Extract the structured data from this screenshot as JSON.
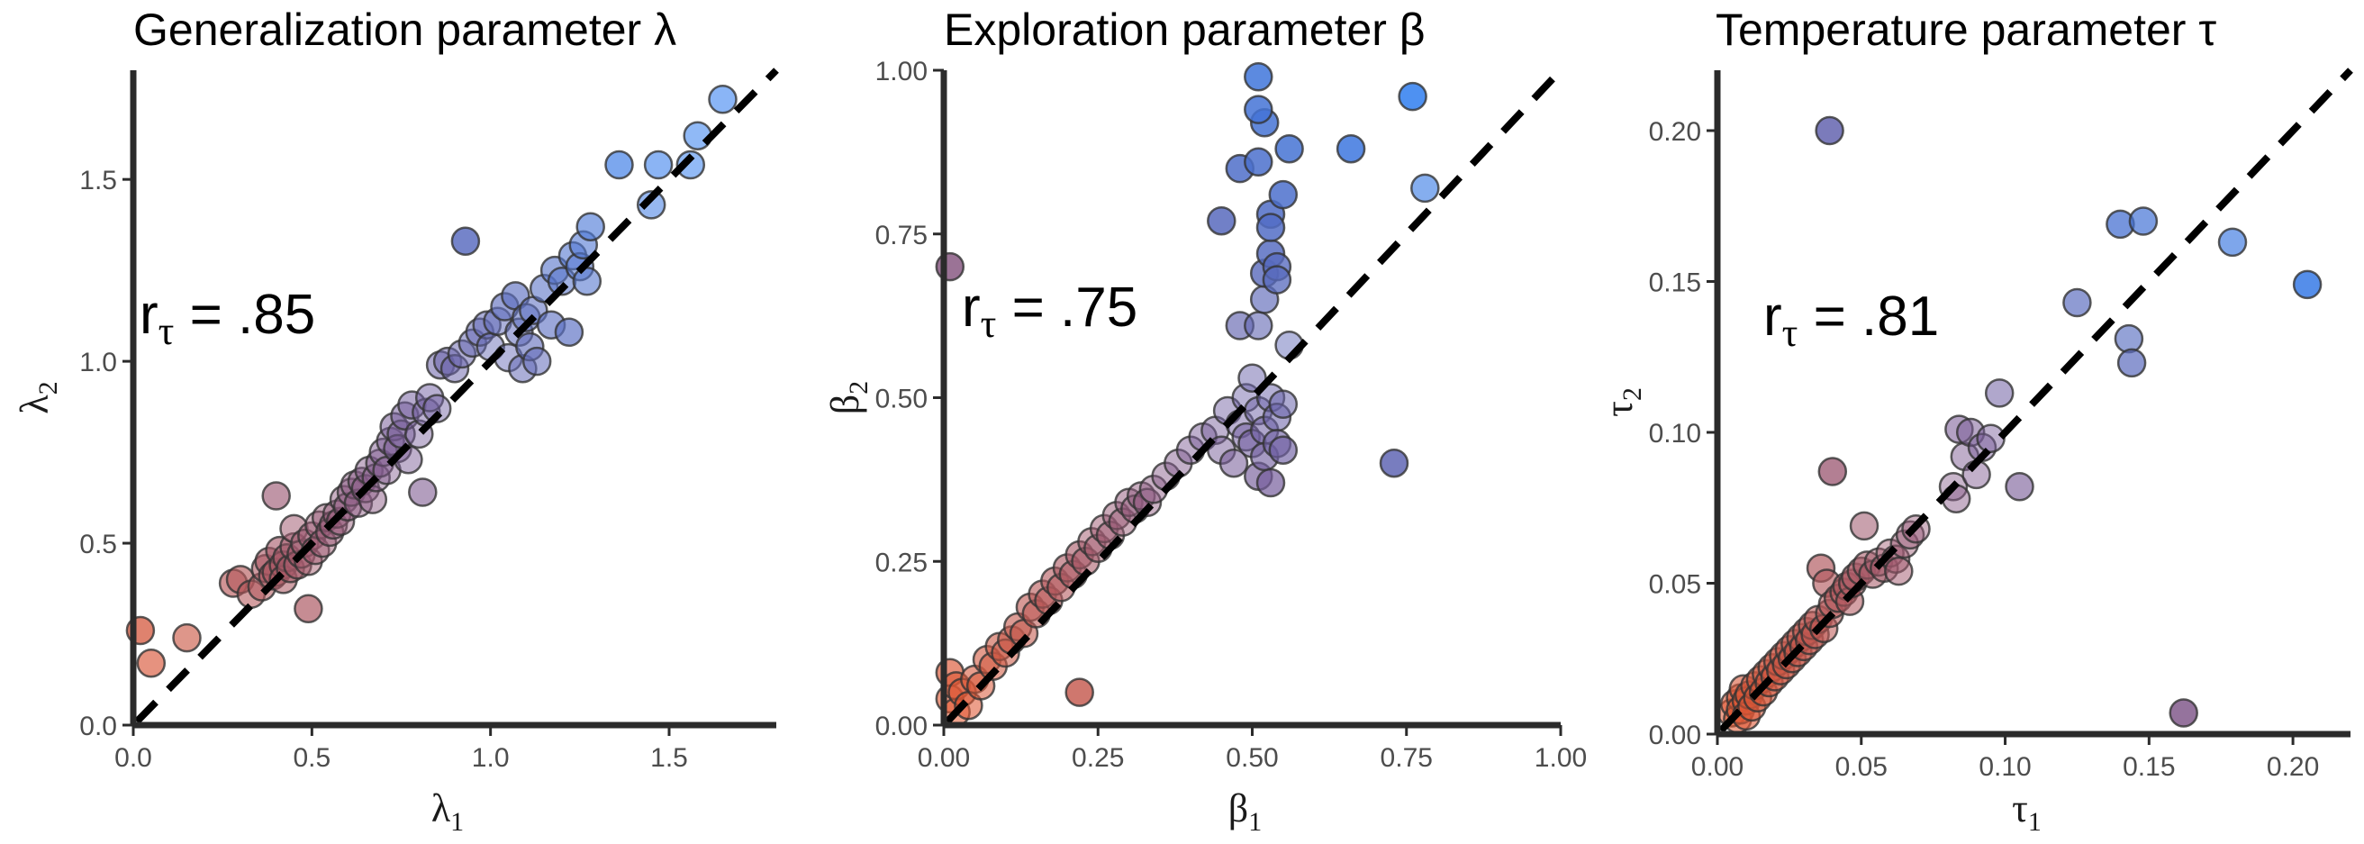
{
  "chart_data": [
    {
      "type": "scatter",
      "title": "Generalization parameter λ",
      "xlabel": "λ",
      "xlabel_sub": "1",
      "ylabel": "λ",
      "ylabel_sub": "2",
      "annotation": {
        "main": "r",
        "sub": "τ",
        "value": " = .85"
      },
      "xlim": [
        0,
        1.8
      ],
      "ylim": [
        0,
        1.8
      ],
      "xticks": [
        0.0,
        0.5,
        1.0,
        1.5
      ],
      "yticks": [
        0.0,
        0.5,
        1.0,
        1.5
      ],
      "xtick_labels": [
        "0.0",
        "0.5",
        "1.0",
        "1.5"
      ],
      "ytick_labels": [
        "0.0",
        "0.5",
        "1.0",
        "1.5"
      ],
      "reference_line": "identity",
      "color_low": "#e8572a",
      "color_high": "#3f86f0",
      "points": [
        [
          0.02,
          0.26
        ],
        [
          0.05,
          0.17
        ],
        [
          0.15,
          0.24
        ],
        [
          0.28,
          0.39
        ],
        [
          0.3,
          0.4
        ],
        [
          0.33,
          0.36
        ],
        [
          0.36,
          0.38
        ],
        [
          0.37,
          0.43
        ],
        [
          0.38,
          0.45
        ],
        [
          0.39,
          0.41
        ],
        [
          0.4,
          0.42
        ],
        [
          0.4,
          0.63
        ],
        [
          0.41,
          0.48
        ],
        [
          0.42,
          0.44
        ],
        [
          0.42,
          0.4
        ],
        [
          0.43,
          0.46
        ],
        [
          0.44,
          0.43
        ],
        [
          0.45,
          0.49
        ],
        [
          0.45,
          0.54
        ],
        [
          0.46,
          0.44
        ],
        [
          0.47,
          0.47
        ],
        [
          0.48,
          0.5
        ],
        [
          0.49,
          0.32
        ],
        [
          0.49,
          0.45
        ],
        [
          0.5,
          0.52
        ],
        [
          0.51,
          0.48
        ],
        [
          0.52,
          0.55
        ],
        [
          0.53,
          0.5
        ],
        [
          0.54,
          0.57
        ],
        [
          0.55,
          0.53
        ],
        [
          0.56,
          0.55
        ],
        [
          0.57,
          0.58
        ],
        [
          0.58,
          0.56
        ],
        [
          0.59,
          0.62
        ],
        [
          0.6,
          0.6
        ],
        [
          0.61,
          0.64
        ],
        [
          0.62,
          0.66
        ],
        [
          0.63,
          0.61
        ],
        [
          0.64,
          0.67
        ],
        [
          0.65,
          0.65
        ],
        [
          0.66,
          0.7
        ],
        [
          0.67,
          0.62
        ],
        [
          0.68,
          0.68
        ],
        [
          0.69,
          0.72
        ],
        [
          0.7,
          0.75
        ],
        [
          0.71,
          0.7
        ],
        [
          0.72,
          0.78
        ],
        [
          0.73,
          0.82
        ],
        [
          0.74,
          0.76
        ],
        [
          0.75,
          0.8
        ],
        [
          0.76,
          0.85
        ],
        [
          0.77,
          0.73
        ],
        [
          0.78,
          0.88
        ],
        [
          0.8,
          0.8
        ],
        [
          0.81,
          0.64
        ],
        [
          0.82,
          0.86
        ],
        [
          0.83,
          0.9
        ],
        [
          0.85,
          0.87
        ],
        [
          0.86,
          0.99
        ],
        [
          0.88,
          1.0
        ],
        [
          0.9,
          0.98
        ],
        [
          0.92,
          1.02
        ],
        [
          0.93,
          1.33
        ],
        [
          0.95,
          1.05
        ],
        [
          0.97,
          1.08
        ],
        [
          0.99,
          1.1
        ],
        [
          1.0,
          1.04
        ],
        [
          1.02,
          1.11
        ],
        [
          1.04,
          1.15
        ],
        [
          1.05,
          1.01
        ],
        [
          1.07,
          1.18
        ],
        [
          1.08,
          1.08
        ],
        [
          1.09,
          0.98
        ],
        [
          1.1,
          1.12
        ],
        [
          1.11,
          1.04
        ],
        [
          1.12,
          1.14
        ],
        [
          1.13,
          1.0
        ],
        [
          1.15,
          1.2
        ],
        [
          1.17,
          1.1
        ],
        [
          1.18,
          1.25
        ],
        [
          1.2,
          1.22
        ],
        [
          1.22,
          1.08
        ],
        [
          1.23,
          1.29
        ],
        [
          1.25,
          1.26
        ],
        [
          1.26,
          1.32
        ],
        [
          1.27,
          1.22
        ],
        [
          1.28,
          1.37
        ],
        [
          1.36,
          1.54
        ],
        [
          1.45,
          1.43
        ],
        [
          1.47,
          1.54
        ],
        [
          1.56,
          1.54
        ],
        [
          1.58,
          1.62
        ],
        [
          1.65,
          1.72
        ]
      ]
    },
    {
      "type": "scatter",
      "title": "Exploration parameter β",
      "xlabel": "β",
      "xlabel_sub": "1",
      "ylabel": "β",
      "ylabel_sub": "2",
      "annotation": {
        "main": "r",
        "sub": "τ",
        "value": " = .75"
      },
      "xlim": [
        0,
        1.0
      ],
      "ylim": [
        0,
        1.0
      ],
      "xticks": [
        0.0,
        0.25,
        0.5,
        0.75,
        1.0
      ],
      "yticks": [
        0.0,
        0.25,
        0.5,
        0.75,
        1.0
      ],
      "xtick_labels": [
        "0.00",
        "0.25",
        "0.50",
        "0.75",
        "1.00"
      ],
      "ytick_labels": [
        "0.00",
        "0.25",
        "0.50",
        "0.75",
        "1.00"
      ],
      "reference_line": "identity",
      "color_low": "#e8572a",
      "color_high": "#2f7ef0",
      "points": [
        [
          0.01,
          0.7
        ],
        [
          0.01,
          0.08
        ],
        [
          0.01,
          0.04
        ],
        [
          0.02,
          0.02
        ],
        [
          0.02,
          0.06
        ],
        [
          0.03,
          0.05
        ],
        [
          0.04,
          0.03
        ],
        [
          0.05,
          0.07
        ],
        [
          0.06,
          0.06
        ],
        [
          0.07,
          0.1
        ],
        [
          0.08,
          0.09
        ],
        [
          0.09,
          0.12
        ],
        [
          0.1,
          0.11
        ],
        [
          0.11,
          0.13
        ],
        [
          0.12,
          0.15
        ],
        [
          0.13,
          0.14
        ],
        [
          0.14,
          0.18
        ],
        [
          0.15,
          0.17
        ],
        [
          0.16,
          0.2
        ],
        [
          0.17,
          0.19
        ],
        [
          0.18,
          0.22
        ],
        [
          0.19,
          0.21
        ],
        [
          0.2,
          0.24
        ],
        [
          0.21,
          0.23
        ],
        [
          0.22,
          0.26
        ],
        [
          0.22,
          0.05
        ],
        [
          0.23,
          0.25
        ],
        [
          0.24,
          0.28
        ],
        [
          0.25,
          0.27
        ],
        [
          0.26,
          0.3
        ],
        [
          0.27,
          0.29
        ],
        [
          0.28,
          0.32
        ],
        [
          0.29,
          0.31
        ],
        [
          0.3,
          0.34
        ],
        [
          0.31,
          0.33
        ],
        [
          0.32,
          0.35
        ],
        [
          0.33,
          0.34
        ],
        [
          0.34,
          0.36
        ],
        [
          0.36,
          0.38
        ],
        [
          0.38,
          0.4
        ],
        [
          0.4,
          0.42
        ],
        [
          0.42,
          0.44
        ],
        [
          0.44,
          0.45
        ],
        [
          0.45,
          0.42
        ],
        [
          0.46,
          0.48
        ],
        [
          0.47,
          0.4
        ],
        [
          0.48,
          0.61
        ],
        [
          0.48,
          0.46
        ],
        [
          0.49,
          0.5
        ],
        [
          0.49,
          0.44
        ],
        [
          0.5,
          0.53
        ],
        [
          0.5,
          0.43
        ],
        [
          0.51,
          0.48
        ],
        [
          0.51,
          0.38
        ],
        [
          0.52,
          0.45
        ],
        [
          0.52,
          0.41
        ],
        [
          0.53,
          0.5
        ],
        [
          0.53,
          0.37
        ],
        [
          0.54,
          0.47
        ],
        [
          0.54,
          0.43
        ],
        [
          0.55,
          0.49
        ],
        [
          0.55,
          0.42
        ],
        [
          0.51,
          0.61
        ],
        [
          0.52,
          0.65
        ],
        [
          0.52,
          0.69
        ],
        [
          0.53,
          0.72
        ],
        [
          0.53,
          0.78
        ],
        [
          0.54,
          0.7
        ],
        [
          0.48,
          0.85
        ],
        [
          0.51,
          0.86
        ],
        [
          0.52,
          0.92
        ],
        [
          0.51,
          0.99
        ],
        [
          0.51,
          0.94
        ],
        [
          0.55,
          0.81
        ],
        [
          0.56,
          0.58
        ],
        [
          0.56,
          0.88
        ],
        [
          0.45,
          0.77
        ],
        [
          0.53,
          0.76
        ],
        [
          0.54,
          0.68
        ],
        [
          0.66,
          0.88
        ],
        [
          0.73,
          0.4
        ],
        [
          0.76,
          0.96
        ],
        [
          0.78,
          0.82
        ]
      ]
    },
    {
      "type": "scatter",
      "title": "Temperature parameter τ",
      "xlabel": "τ",
      "xlabel_sub": "1",
      "ylabel": "τ",
      "ylabel_sub": "2",
      "annotation": {
        "main": "r",
        "sub": "τ",
        "value": " = .81"
      },
      "xlim": [
        0,
        0.22
      ],
      "ylim": [
        0,
        0.22
      ],
      "xticks": [
        0.0,
        0.05,
        0.1,
        0.15,
        0.2
      ],
      "yticks": [
        0.0,
        0.05,
        0.1,
        0.15,
        0.2
      ],
      "xtick_labels": [
        "0.00",
        "0.05",
        "0.10",
        "0.15",
        "0.20"
      ],
      "ytick_labels": [
        "0.00",
        "0.05",
        "0.10",
        "0.15",
        "0.20"
      ],
      "reference_line": "identity",
      "color_low": "#e8572a",
      "color_high": "#2f7ef0",
      "points": [
        [
          0.005,
          0.007
        ],
        [
          0.006,
          0.01
        ],
        [
          0.007,
          0.005
        ],
        [
          0.008,
          0.012
        ],
        [
          0.008,
          0.008
        ],
        [
          0.009,
          0.015
        ],
        [
          0.01,
          0.011
        ],
        [
          0.01,
          0.006
        ],
        [
          0.011,
          0.013
        ],
        [
          0.012,
          0.009
        ],
        [
          0.013,
          0.016
        ],
        [
          0.014,
          0.012
        ],
        [
          0.015,
          0.018
        ],
        [
          0.016,
          0.014
        ],
        [
          0.017,
          0.02
        ],
        [
          0.018,
          0.017
        ],
        [
          0.019,
          0.022
        ],
        [
          0.02,
          0.019
        ],
        [
          0.021,
          0.024
        ],
        [
          0.022,
          0.021
        ],
        [
          0.023,
          0.026
        ],
        [
          0.024,
          0.023
        ],
        [
          0.025,
          0.028
        ],
        [
          0.026,
          0.025
        ],
        [
          0.027,
          0.03
        ],
        [
          0.028,
          0.027
        ],
        [
          0.029,
          0.032
        ],
        [
          0.03,
          0.029
        ],
        [
          0.031,
          0.034
        ],
        [
          0.032,
          0.031
        ],
        [
          0.033,
          0.036
        ],
        [
          0.034,
          0.033
        ],
        [
          0.035,
          0.038
        ],
        [
          0.036,
          0.055
        ],
        [
          0.037,
          0.035
        ],
        [
          0.038,
          0.05
        ],
        [
          0.039,
          0.04
        ],
        [
          0.04,
          0.087
        ],
        [
          0.04,
          0.043
        ],
        [
          0.042,
          0.045
        ],
        [
          0.044,
          0.047
        ],
        [
          0.045,
          0.049
        ],
        [
          0.046,
          0.044
        ],
        [
          0.047,
          0.05
        ],
        [
          0.048,
          0.052
        ],
        [
          0.05,
          0.054
        ],
        [
          0.051,
          0.069
        ],
        [
          0.052,
          0.056
        ],
        [
          0.054,
          0.053
        ],
        [
          0.056,
          0.057
        ],
        [
          0.058,
          0.055
        ],
        [
          0.06,
          0.06
        ],
        [
          0.062,
          0.058
        ],
        [
          0.063,
          0.054
        ],
        [
          0.065,
          0.063
        ],
        [
          0.067,
          0.066
        ],
        [
          0.069,
          0.068
        ],
        [
          0.082,
          0.082
        ],
        [
          0.083,
          0.078
        ],
        [
          0.084,
          0.101
        ],
        [
          0.086,
          0.092
        ],
        [
          0.088,
          0.1
        ],
        [
          0.09,
          0.086
        ],
        [
          0.092,
          0.095
        ],
        [
          0.095,
          0.098
        ],
        [
          0.098,
          0.113
        ],
        [
          0.105,
          0.082
        ],
        [
          0.125,
          0.143
        ],
        [
          0.14,
          0.169
        ],
        [
          0.143,
          0.131
        ],
        [
          0.144,
          0.123
        ],
        [
          0.148,
          0.17
        ],
        [
          0.162,
          0.007
        ],
        [
          0.179,
          0.163
        ],
        [
          0.205,
          0.149
        ],
        [
          0.039,
          0.2
        ]
      ]
    }
  ]
}
